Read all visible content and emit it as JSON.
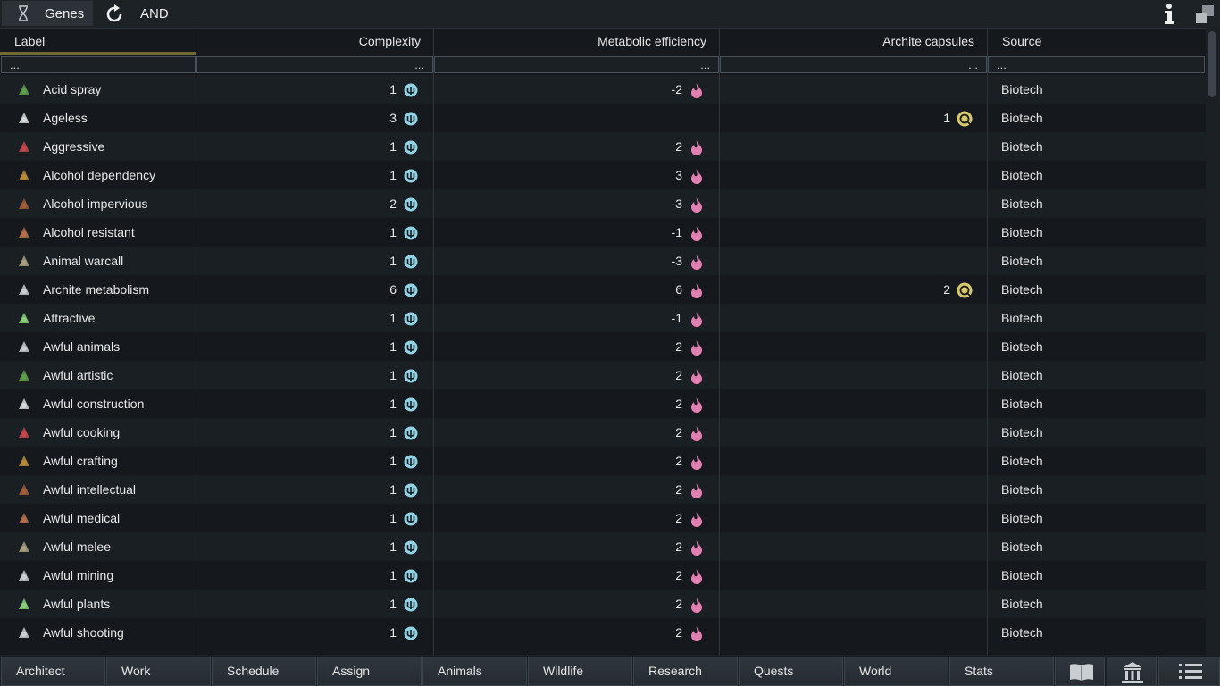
{
  "topbar": {
    "tab_label": "Genes",
    "and_label": "AND",
    "icons": [
      "dna-icon",
      "refresh-icon",
      "info-icon",
      "restore-window-icon"
    ]
  },
  "columns": {
    "label": "Label",
    "complexity": "Complexity",
    "metabolic": "Metabolic efficiency",
    "archite": "Archite capsules",
    "source": "Source"
  },
  "filters": {
    "label": "...",
    "complexity": "...",
    "metabolic": "...",
    "archite": "...",
    "source": "..."
  },
  "rows": [
    {
      "label": "Acid spray",
      "complexity": "1",
      "metabolic": "-2",
      "archite": "",
      "source": "Biotech",
      "icon": "acid-spray-icon"
    },
    {
      "label": "Ageless",
      "complexity": "3",
      "metabolic": "",
      "archite": "1",
      "source": "Biotech",
      "icon": "hourglass-icon"
    },
    {
      "label": "Aggressive",
      "complexity": "1",
      "metabolic": "2",
      "archite": "",
      "source": "Biotech",
      "icon": "aggressive-icon"
    },
    {
      "label": "Alcohol dependency",
      "complexity": "1",
      "metabolic": "3",
      "archite": "",
      "source": "Biotech",
      "icon": "alcohol-dependency-icon"
    },
    {
      "label": "Alcohol impervious",
      "complexity": "2",
      "metabolic": "-3",
      "archite": "",
      "source": "Biotech",
      "icon": "alcohol-impervious-icon"
    },
    {
      "label": "Alcohol resistant",
      "complexity": "1",
      "metabolic": "-1",
      "archite": "",
      "source": "Biotech",
      "icon": "alcohol-resistant-icon"
    },
    {
      "label": "Animal warcall",
      "complexity": "1",
      "metabolic": "-3",
      "archite": "",
      "source": "Biotech",
      "icon": "animal-warcall-icon"
    },
    {
      "label": "Archite metabolism",
      "complexity": "6",
      "metabolic": "6",
      "archite": "2",
      "source": "Biotech",
      "icon": "stomach-icon"
    },
    {
      "label": "Attractive",
      "complexity": "1",
      "metabolic": "-1",
      "archite": "",
      "source": "Biotech",
      "icon": "attractive-icon"
    },
    {
      "label": "Awful animals",
      "complexity": "1",
      "metabolic": "2",
      "archite": "",
      "source": "Biotech",
      "icon": "awful-animals-icon"
    },
    {
      "label": "Awful artistic",
      "complexity": "1",
      "metabolic": "2",
      "archite": "",
      "source": "Biotech",
      "icon": "awful-artistic-icon"
    },
    {
      "label": "Awful construction",
      "complexity": "1",
      "metabolic": "2",
      "archite": "",
      "source": "Biotech",
      "icon": "awful-construction-icon"
    },
    {
      "label": "Awful cooking",
      "complexity": "1",
      "metabolic": "2",
      "archite": "",
      "source": "Biotech",
      "icon": "awful-cooking-icon"
    },
    {
      "label": "Awful crafting",
      "complexity": "1",
      "metabolic": "2",
      "archite": "",
      "source": "Biotech",
      "icon": "awful-crafting-icon"
    },
    {
      "label": "Awful intellectual",
      "complexity": "1",
      "metabolic": "2",
      "archite": "",
      "source": "Biotech",
      "icon": "awful-intellectual-icon"
    },
    {
      "label": "Awful medical",
      "complexity": "1",
      "metabolic": "2",
      "archite": "",
      "source": "Biotech",
      "icon": "awful-medical-icon"
    },
    {
      "label": "Awful melee",
      "complexity": "1",
      "metabolic": "2",
      "archite": "",
      "source": "Biotech",
      "icon": "awful-melee-icon"
    },
    {
      "label": "Awful mining",
      "complexity": "1",
      "metabolic": "2",
      "archite": "",
      "source": "Biotech",
      "icon": "awful-mining-icon"
    },
    {
      "label": "Awful plants",
      "complexity": "1",
      "metabolic": "2",
      "archite": "",
      "source": "Biotech",
      "icon": "awful-plants-icon"
    },
    {
      "label": "Awful shooting",
      "complexity": "1",
      "metabolic": "2",
      "archite": "",
      "source": "Biotech",
      "icon": "awful-shooting-icon"
    }
  ],
  "colors": {
    "complexity_icon": "#8fd3e4",
    "metabolic_icon": "#e27fb2",
    "archite_icon": "#d8c86a",
    "label_underline": "#6e6a32"
  },
  "bottombar": {
    "tabs": [
      "Architect",
      "Work",
      "Schedule",
      "Assign",
      "Animals",
      "Wildlife",
      "Research",
      "Quests",
      "World",
      "Stats"
    ],
    "icons": [
      "book-icon",
      "factions-icon",
      "menu-icon"
    ]
  }
}
